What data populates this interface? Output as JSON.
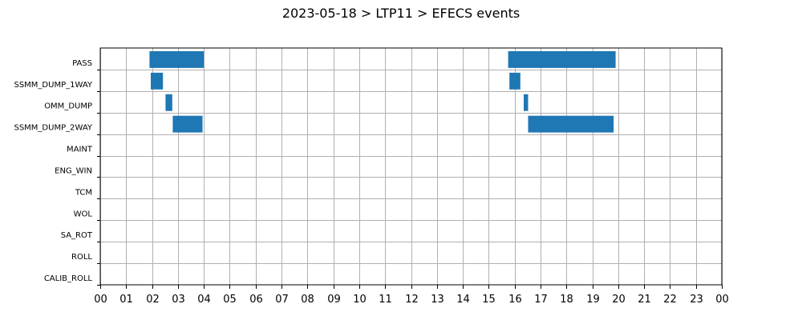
{
  "chart_data": {
    "type": "gantt",
    "title": "2023-05-18 > LTP11 > EFECS events",
    "xlabel": "",
    "ylabel": "",
    "x_unit": "hour",
    "xlim": [
      0,
      24
    ],
    "x_tick_labels": [
      "00",
      "01",
      "02",
      "03",
      "04",
      "05",
      "06",
      "07",
      "08",
      "09",
      "10",
      "11",
      "12",
      "13",
      "14",
      "15",
      "16",
      "17",
      "18",
      "19",
      "20",
      "21",
      "22",
      "23",
      "00"
    ],
    "categories": [
      "PASS",
      "SSMM_DUMP_1WAY",
      "OMM_DUMP",
      "SSMM_DUMP_2WAY",
      "MAINT",
      "ENG_WIN",
      "TCM",
      "WOL",
      "SA_ROT",
      "ROLL",
      "CALIB_ROLL"
    ],
    "grid": true,
    "bar_color": "#1f77b4",
    "events": [
      {
        "category": "PASS",
        "start": 1.9,
        "end": 4.0
      },
      {
        "category": "PASS",
        "start": 15.75,
        "end": 19.9
      },
      {
        "category": "SSMM_DUMP_1WAY",
        "start": 1.95,
        "end": 2.42
      },
      {
        "category": "SSMM_DUMP_1WAY",
        "start": 15.8,
        "end": 16.22
      },
      {
        "category": "OMM_DUMP",
        "start": 2.52,
        "end": 2.78
      },
      {
        "category": "OMM_DUMP",
        "start": 16.35,
        "end": 16.52
      },
      {
        "category": "SSMM_DUMP_2WAY",
        "start": 2.8,
        "end": 3.95
      },
      {
        "category": "SSMM_DUMP_2WAY",
        "start": 16.52,
        "end": 19.82
      }
    ]
  }
}
